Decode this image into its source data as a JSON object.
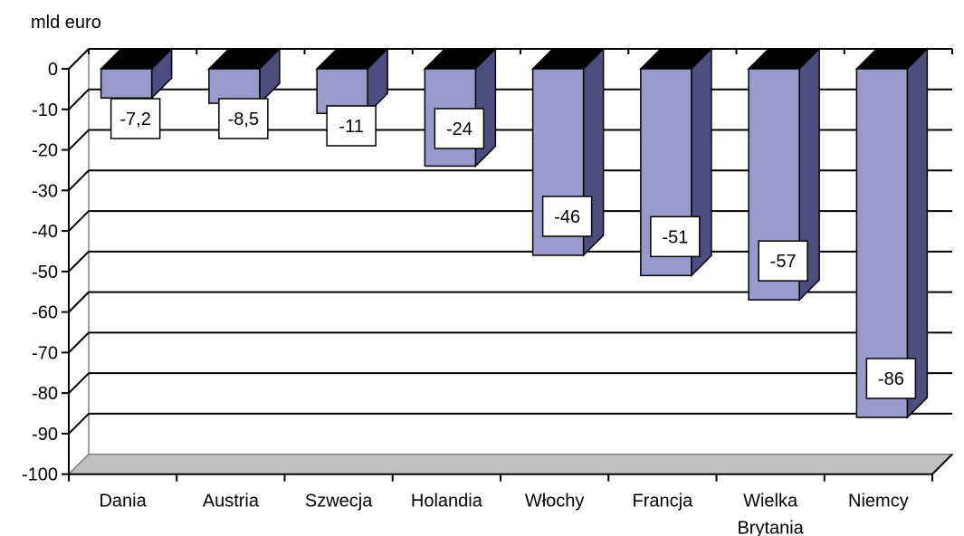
{
  "chart_data": {
    "type": "bar",
    "unit_label": "mld euro",
    "categories": [
      "Dania",
      "Austria",
      "Szwecja",
      "Holandia",
      "Włochy",
      "Francja",
      "Wielka Brytania",
      "Niemcy"
    ],
    "values": [
      -7.2,
      -8.5,
      -11,
      -24,
      -46,
      -51,
      -57,
      -86
    ],
    "data_labels": [
      "-7,2",
      "-8,5",
      "-11",
      "-24",
      "-46",
      "-51",
      "-57",
      "-86"
    ],
    "y_ticks": [
      "0",
      "-10",
      "-20",
      "-30",
      "-40",
      "-50",
      "-60",
      "-70",
      "-80",
      "-90",
      "-100"
    ],
    "ylim": [
      -100,
      0
    ],
    "grid": true,
    "style": "3d",
    "colors": {
      "bar_front": "#9999CC",
      "bar_side": "#4D4D80",
      "bar_top": "#000000",
      "floor": "#C0C0C0",
      "gridline": "#000000"
    }
  }
}
